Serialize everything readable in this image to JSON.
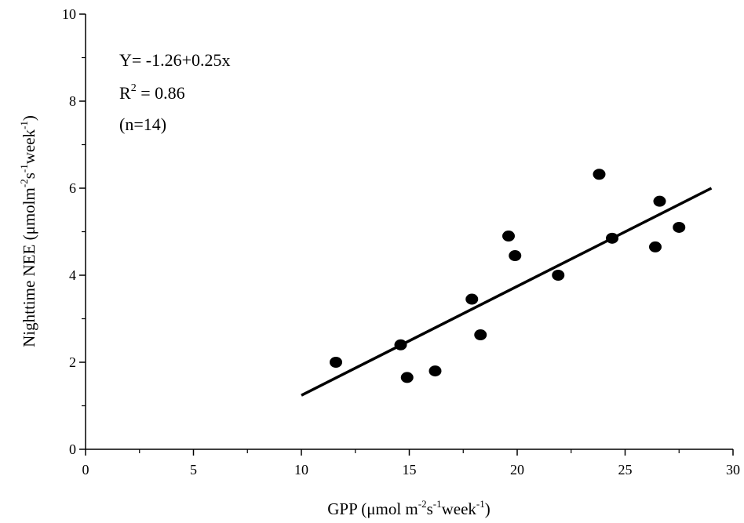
{
  "chart_data": {
    "type": "scatter",
    "x_label": [
      "GPP (μmol m",
      "-2",
      "s",
      "-1",
      "week",
      "-1",
      ")"
    ],
    "y_label": [
      "Nighttime NEE (μmolm",
      "-2",
      "s",
      "-1",
      "week",
      "-1",
      ")"
    ],
    "annotations": [
      [
        "Y= -1.26+0.25x"
      ],
      [
        "R",
        "2",
        " = 0.86"
      ],
      [
        "(n=14)"
      ]
    ],
    "x": [
      11.6,
      14.6,
      14.9,
      16.2,
      17.9,
      18.3,
      19.6,
      19.9,
      21.9,
      23.8,
      24.4,
      26.4,
      26.6,
      27.5
    ],
    "values": [
      2.0,
      2.4,
      1.65,
      1.8,
      3.45,
      2.63,
      4.9,
      4.45,
      4.0,
      6.32,
      4.85,
      4.65,
      5.7,
      5.1
    ],
    "color": "#000000",
    "trend": {
      "x": [
        10,
        29
      ],
      "values": [
        1.24,
        6.0
      ]
    },
    "xlim": [
      0,
      30
    ],
    "xticks": [
      0,
      5,
      10,
      15,
      20,
      25,
      30
    ],
    "xminorticks": [
      2.5,
      7.5,
      12.5,
      17.5,
      22.5,
      27.5
    ],
    "ylim": [
      0,
      10
    ],
    "yticks": [
      0,
      2,
      4,
      6,
      8,
      10
    ],
    "yminorticks": [
      1,
      3,
      5,
      7,
      9
    ]
  }
}
